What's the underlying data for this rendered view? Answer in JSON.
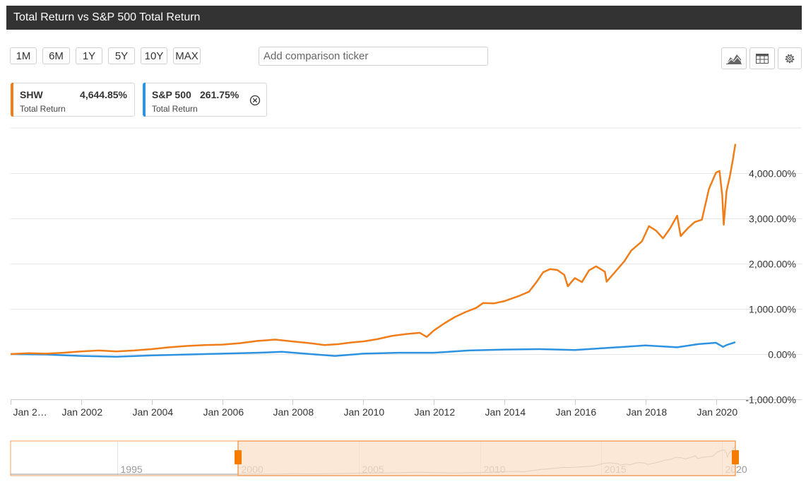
{
  "title": "Total Return vs S&P 500 Total Return",
  "toolbar": {
    "ranges": [
      "1M",
      "6M",
      "1Y",
      "5Y",
      "10Y",
      "MAX"
    ],
    "comparison_placeholder": "Add comparison ticker",
    "tools": [
      "area-chart-icon",
      "table-icon",
      "gear-icon"
    ]
  },
  "legend": [
    {
      "symbol": "SHW",
      "value": "4,644.85%",
      "sub": "Total Return",
      "color": "#f07d19"
    },
    {
      "symbol": "S&P 500",
      "value": "261.75%",
      "sub": "Total Return",
      "color": "#2d93e1",
      "removable": true
    }
  ],
  "colors": {
    "shw": "#f07d19",
    "sp500": "#2d93e1",
    "navigator_fill": "#fbe0c8",
    "navigator_border": "#f0a060"
  },
  "chart_data": {
    "type": "line",
    "title": "Total Return vs S&P 500 Total Return",
    "xlabel": "",
    "ylabel": "",
    "x_range": [
      2000.0,
      2020.55
    ],
    "ylim": [
      -1000,
      5000
    ],
    "y_ticks": [
      -1000,
      0,
      1000,
      2000,
      3000,
      4000
    ],
    "y_tick_labels": [
      "-1,000.00%",
      "0.00%",
      "1,000.00%",
      "2,000.00%",
      "3,000.00%",
      "4,000.00%"
    ],
    "x_ticks": [
      2000,
      2002,
      2004,
      2006,
      2008,
      2010,
      2012,
      2014,
      2016,
      2018,
      2020
    ],
    "x_tick_labels": [
      "Jan 2…",
      "Jan 2002",
      "Jan 2004",
      "Jan 2006",
      "Jan 2008",
      "Jan 2010",
      "Jan 2012",
      "Jan 2014",
      "Jan 2016",
      "Jan 2018",
      "Jan 2020"
    ],
    "grid": true,
    "legend": "top-left",
    "series": [
      {
        "name": "SHW",
        "label": "Total Return",
        "last_value": "4,644.85%",
        "points": [
          [
            2000.0,
            0
          ],
          [
            2000.5,
            20
          ],
          [
            2001.0,
            10
          ],
          [
            2001.5,
            30
          ],
          [
            2002.0,
            60
          ],
          [
            2002.5,
            80
          ],
          [
            2003.0,
            60
          ],
          [
            2003.5,
            80
          ],
          [
            2004.0,
            110
          ],
          [
            2004.5,
            150
          ],
          [
            2005.0,
            180
          ],
          [
            2005.5,
            200
          ],
          [
            2006.0,
            210
          ],
          [
            2006.5,
            240
          ],
          [
            2007.0,
            290
          ],
          [
            2007.5,
            320
          ],
          [
            2008.0,
            280
          ],
          [
            2008.5,
            240
          ],
          [
            2008.9,
            200
          ],
          [
            2009.3,
            220
          ],
          [
            2009.7,
            260
          ],
          [
            2010.0,
            280
          ],
          [
            2010.4,
            330
          ],
          [
            2010.8,
            400
          ],
          [
            2011.2,
            440
          ],
          [
            2011.6,
            470
          ],
          [
            2011.8,
            380
          ],
          [
            2012.0,
            520
          ],
          [
            2012.3,
            680
          ],
          [
            2012.6,
            820
          ],
          [
            2012.9,
            930
          ],
          [
            2013.2,
            1020
          ],
          [
            2013.4,
            1130
          ],
          [
            2013.7,
            1120
          ],
          [
            2014.0,
            1170
          ],
          [
            2014.4,
            1280
          ],
          [
            2014.7,
            1380
          ],
          [
            2014.9,
            1580
          ],
          [
            2015.1,
            1810
          ],
          [
            2015.3,
            1880
          ],
          [
            2015.5,
            1860
          ],
          [
            2015.7,
            1750
          ],
          [
            2015.8,
            1500
          ],
          [
            2016.0,
            1680
          ],
          [
            2016.2,
            1590
          ],
          [
            2016.4,
            1850
          ],
          [
            2016.6,
            1940
          ],
          [
            2016.85,
            1820
          ],
          [
            2016.9,
            1600
          ],
          [
            2017.1,
            1780
          ],
          [
            2017.4,
            2050
          ],
          [
            2017.6,
            2290
          ],
          [
            2017.9,
            2490
          ],
          [
            2018.1,
            2830
          ],
          [
            2018.3,
            2730
          ],
          [
            2018.5,
            2560
          ],
          [
            2018.7,
            2780
          ],
          [
            2018.9,
            3060
          ],
          [
            2019.0,
            2610
          ],
          [
            2019.2,
            2780
          ],
          [
            2019.4,
            2920
          ],
          [
            2019.6,
            2970
          ],
          [
            2019.8,
            3650
          ],
          [
            2020.0,
            4010
          ],
          [
            2020.1,
            4050
          ],
          [
            2020.18,
            3500
          ],
          [
            2020.22,
            2860
          ],
          [
            2020.3,
            3600
          ],
          [
            2020.4,
            3950
          ],
          [
            2020.48,
            4300
          ],
          [
            2020.55,
            4645
          ]
        ]
      },
      {
        "name": "S&P 500",
        "label": "Total Return",
        "last_value": "261.75%",
        "points": [
          [
            2000.0,
            0
          ],
          [
            2001.0,
            -10
          ],
          [
            2002.0,
            -40
          ],
          [
            2003.0,
            -60
          ],
          [
            2004.0,
            -30
          ],
          [
            2005.0,
            -10
          ],
          [
            2006.0,
            10
          ],
          [
            2007.0,
            30
          ],
          [
            2007.7,
            50
          ],
          [
            2008.5,
            0
          ],
          [
            2009.2,
            -40
          ],
          [
            2010.0,
            10
          ],
          [
            2011.0,
            30
          ],
          [
            2012.0,
            30
          ],
          [
            2013.0,
            80
          ],
          [
            2014.0,
            100
          ],
          [
            2015.0,
            110
          ],
          [
            2016.0,
            90
          ],
          [
            2017.0,
            140
          ],
          [
            2018.0,
            190
          ],
          [
            2018.9,
            150
          ],
          [
            2019.5,
            220
          ],
          [
            2020.0,
            250
          ],
          [
            2020.2,
            160
          ],
          [
            2020.3,
            200
          ],
          [
            2020.55,
            262
          ]
        ]
      }
    ],
    "navigator": {
      "x_tick_labels": [
        "1995",
        "2000",
        "2005",
        "2010",
        "2015",
        "2020"
      ],
      "x_ticks": [
        1995,
        2000,
        2005,
        2010,
        2015,
        2020
      ]
    }
  }
}
